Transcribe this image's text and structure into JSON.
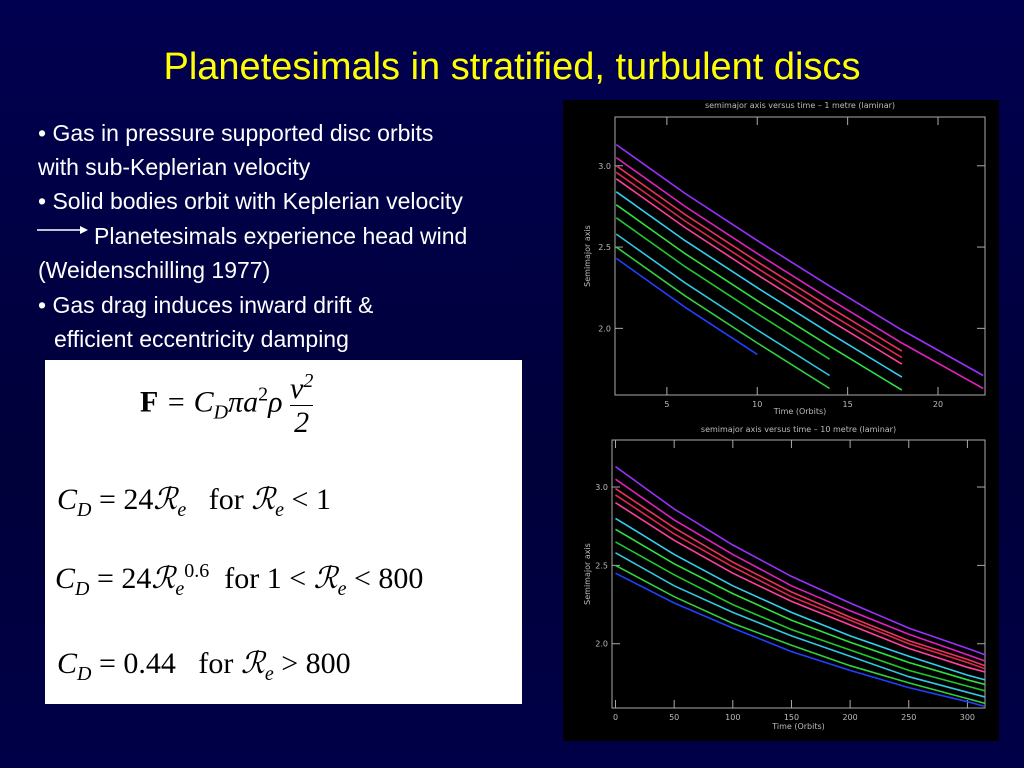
{
  "title": "Planetesimals in stratified, turbulent discs",
  "bullets": [
    "• Gas in pressure supported disc orbits",
    "with sub-Keplerian velocity",
    "• Solid bodies orbit with Keplerian velocity",
    "Planetesimals experience head wind",
    "(Weidenschilling 1977)",
    "• Gas drag induces inward drift &",
    "efficient eccentricity damping"
  ],
  "equations": [
    {
      "parts": [
        "F",
        " = C",
        "D",
        "πa",
        "2",
        "ρ",
        "v",
        "2",
        "2"
      ]
    },
    {
      "parts": [
        "C",
        "D",
        " = 24",
        "ℛ",
        "e",
        "for ",
        "ℛ",
        "e",
        " < 1"
      ]
    },
    {
      "parts": [
        "C",
        "D",
        " = 24",
        "ℛ",
        "e",
        "0.6",
        "for 1 < ",
        "ℛ",
        "e",
        " < 800"
      ]
    },
    {
      "parts": [
        "C",
        "D",
        " = 0.44",
        "for ",
        "ℛ",
        "e",
        " > 800"
      ]
    }
  ],
  "chart_data": [
    {
      "type": "line",
      "title": "semimajor axis versus time – 1 metre (laminar)",
      "xlabel": "Time (Orbits)",
      "ylabel": "Semimajor axis",
      "x": [
        2.2,
        6,
        10,
        14,
        18,
        22.5
      ],
      "xlim": [
        2.13,
        22.6
      ],
      "ylim": [
        1.59,
        3.3
      ],
      "xticks": [
        5,
        10,
        15,
        20
      ],
      "yticks": [
        {
          "value": 2,
          "label": "2.0"
        },
        {
          "value": 2.5,
          "label": "2.5"
        },
        {
          "value": 3,
          "label": "3.0"
        }
      ],
      "series": [
        {
          "color": "#9a30ff",
          "values": [
            3.13,
            2.83,
            2.54,
            2.26,
            1.99,
            1.71
          ]
        },
        {
          "color": "#e020c0",
          "values": [
            3.05,
            2.75,
            2.46,
            2.18,
            1.91,
            1.63
          ]
        },
        {
          "color": "#f03060",
          "values": [
            3.0,
            2.7,
            2.41,
            2.13,
            1.86,
            null
          ]
        },
        {
          "color": "#e02850",
          "values": [
            2.96,
            2.66,
            2.37,
            2.09,
            1.82,
            null
          ]
        },
        {
          "color": "#ff40a0",
          "values": [
            2.92,
            2.62,
            2.33,
            2.05,
            1.78,
            null
          ]
        },
        {
          "color": "#30d0f0",
          "values": [
            2.84,
            2.54,
            2.25,
            1.97,
            1.7,
            null
          ]
        },
        {
          "color": "#30e040",
          "values": [
            2.76,
            2.46,
            2.17,
            1.89,
            1.62,
            null
          ]
        },
        {
          "color": "#20c830",
          "values": [
            2.68,
            2.38,
            2.09,
            1.81,
            null,
            null
          ]
        },
        {
          "color": "#30c8e0",
          "values": [
            2.58,
            2.28,
            1.99,
            1.71,
            null,
            null
          ]
        },
        {
          "color": "#30d040",
          "values": [
            2.5,
            2.2,
            1.91,
            1.63,
            null,
            null
          ]
        },
        {
          "color": "#2040ff",
          "values": [
            2.43,
            2.13,
            1.84,
            null,
            null,
            null
          ]
        }
      ]
    },
    {
      "type": "line",
      "title": "semimajor axis versus time – 10 metre (laminar)",
      "xlabel": "Time (Orbits)",
      "ylabel": "Semimajor axis",
      "x": [
        0,
        50,
        100,
        150,
        200,
        250,
        300,
        315
      ],
      "xlim": [
        -3,
        315
      ],
      "ylim": [
        1.59,
        3.3
      ],
      "xticks": [
        0,
        50,
        100,
        150,
        200,
        250,
        300
      ],
      "yticks": [
        {
          "value": 2,
          "label": "2.0"
        },
        {
          "value": 2.5,
          "label": "2.5"
        },
        {
          "value": 3,
          "label": "3.0"
        }
      ],
      "series": [
        {
          "color": "#9a30ff",
          "values": [
            3.13,
            2.86,
            2.63,
            2.43,
            2.26,
            2.1,
            1.97,
            1.93
          ]
        },
        {
          "color": "#e020c0",
          "values": [
            3.05,
            2.79,
            2.57,
            2.37,
            2.21,
            2.06,
            1.93,
            1.89
          ]
        },
        {
          "color": "#f03060",
          "values": [
            2.99,
            2.74,
            2.52,
            2.33,
            2.17,
            2.02,
            1.9,
            1.86
          ]
        },
        {
          "color": "#e02850",
          "values": [
            2.95,
            2.7,
            2.49,
            2.3,
            2.15,
            2.0,
            1.88,
            1.84
          ]
        },
        {
          "color": "#ff40a0",
          "values": [
            2.9,
            2.66,
            2.45,
            2.27,
            2.12,
            1.97,
            1.85,
            1.82
          ]
        },
        {
          "color": "#30d0f0",
          "values": [
            2.8,
            2.57,
            2.37,
            2.2,
            2.05,
            1.92,
            1.8,
            1.77
          ]
        },
        {
          "color": "#30e040",
          "values": [
            2.73,
            2.51,
            2.32,
            2.15,
            2.01,
            1.88,
            1.77,
            1.74
          ]
        },
        {
          "color": "#20c830",
          "values": [
            2.65,
            2.44,
            2.25,
            2.09,
            1.96,
            1.83,
            1.73,
            1.7
          ]
        },
        {
          "color": "#30c8e0",
          "values": [
            2.58,
            2.37,
            2.2,
            2.05,
            1.92,
            1.79,
            1.69,
            1.66
          ]
        },
        {
          "color": "#30d040",
          "values": [
            2.5,
            2.3,
            2.13,
            1.99,
            1.86,
            1.75,
            1.65,
            1.62
          ]
        },
        {
          "color": "#2040ff",
          "values": [
            2.45,
            2.26,
            2.1,
            1.95,
            1.83,
            1.72,
            1.63,
            1.6
          ]
        }
      ]
    }
  ]
}
